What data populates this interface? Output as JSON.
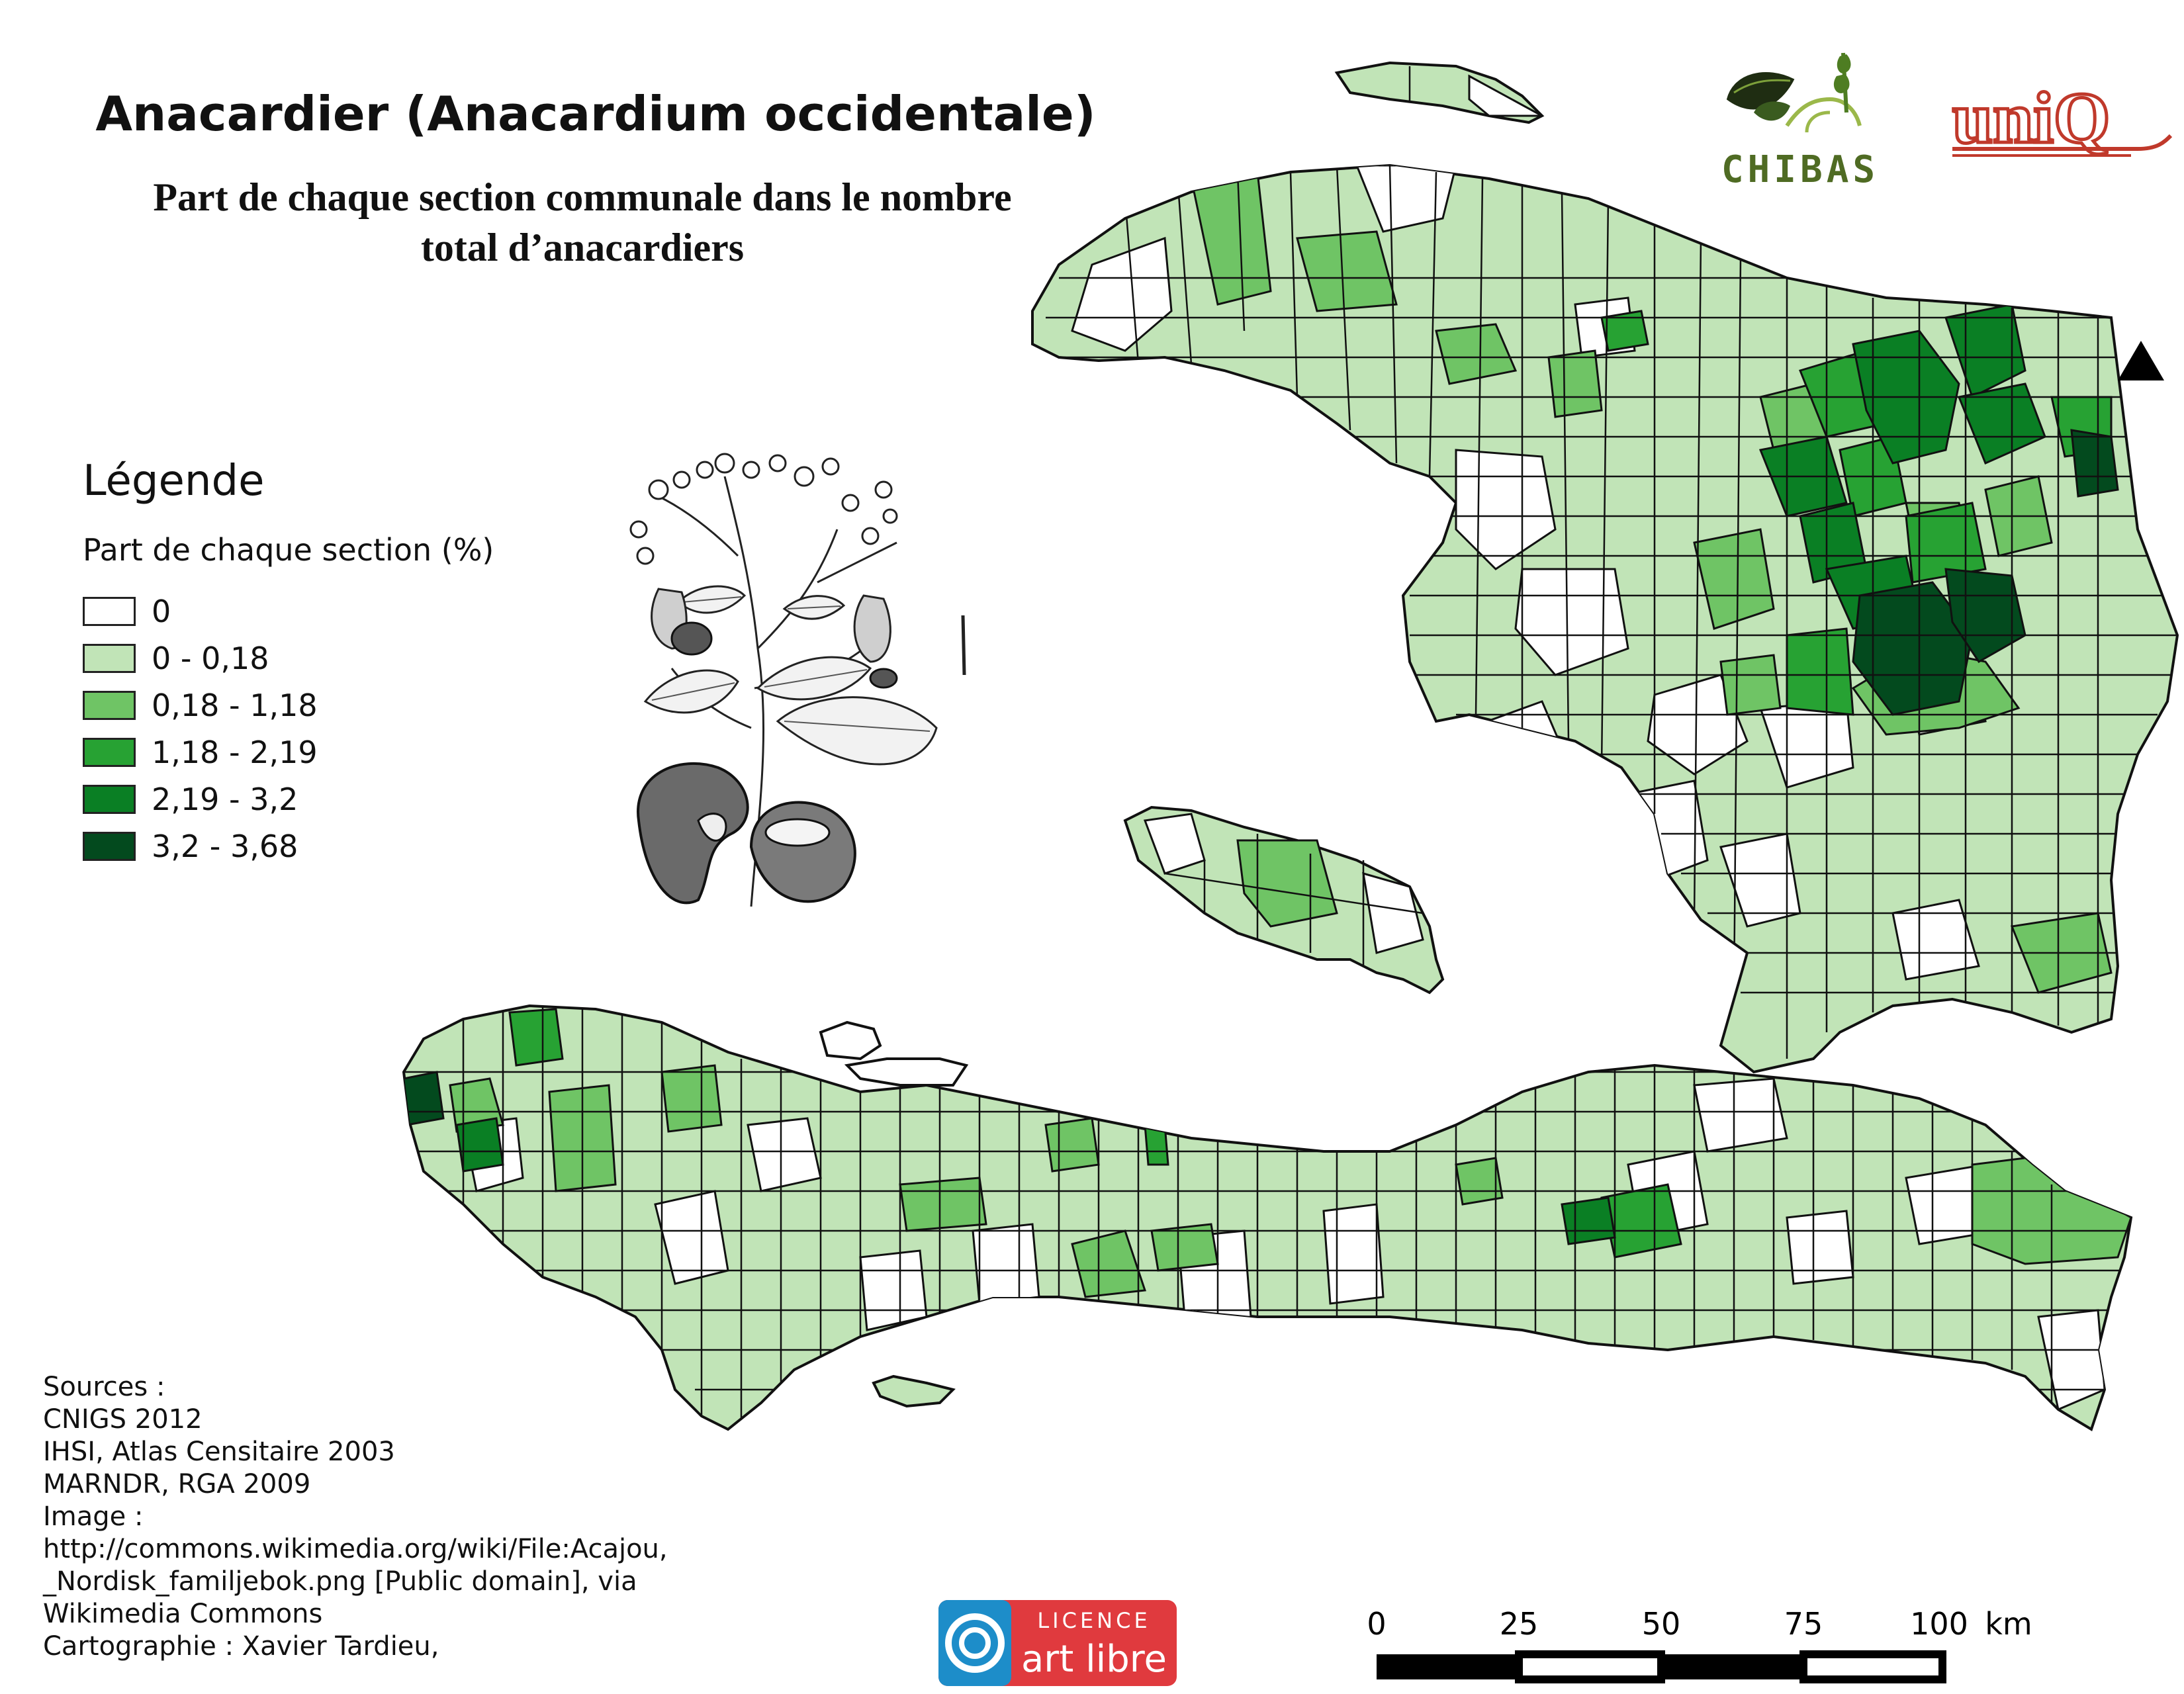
{
  "title": "Anacardier (Anacardium occidentale)",
  "subtitle_line1": "Part de chaque section communale dans le nombre",
  "subtitle_line2": "total d’anacardiers",
  "legend": {
    "title": "Légende",
    "subtitle": "Part de chaque section (%)",
    "classes": [
      {
        "label": "0",
        "color": "#ffffff"
      },
      {
        "label": "0 - 0,18",
        "color": "#c1e4b7"
      },
      {
        "label": "0,18 - 1,18",
        "color": "#6fc465"
      },
      {
        "label": "1,18 - 2,19",
        "color": "#27a233"
      },
      {
        "label": "2,19 - 3,2",
        "color": "#0a7f24"
      },
      {
        "label": "3,2 - 3,68",
        "color": "#034a1e"
      }
    ]
  },
  "sources": [
    "Sources :",
    "CNIGS 2012",
    "IHSI, Atlas Censitaire 2003",
    "MARNDR, RGA 2009",
    "Image :",
    "http://commons.wikimedia.org/wiki/File:Acajou,",
    "_Nordisk_familjebok.png [Public domain], via",
    "Wikimedia Commons",
    "Cartographie : Xavier Tardieu,"
  ],
  "logos": {
    "chibas": "CHIBAS",
    "uniq": "uniQ",
    "licence_top": "LICENCE",
    "licence_bottom": "art libre"
  },
  "scale": {
    "ticks": [
      "0",
      "25",
      "50",
      "75",
      "100"
    ],
    "unit": "km"
  },
  "icons": {
    "north": "north-arrow-icon",
    "plant": "cashew-illustration"
  }
}
